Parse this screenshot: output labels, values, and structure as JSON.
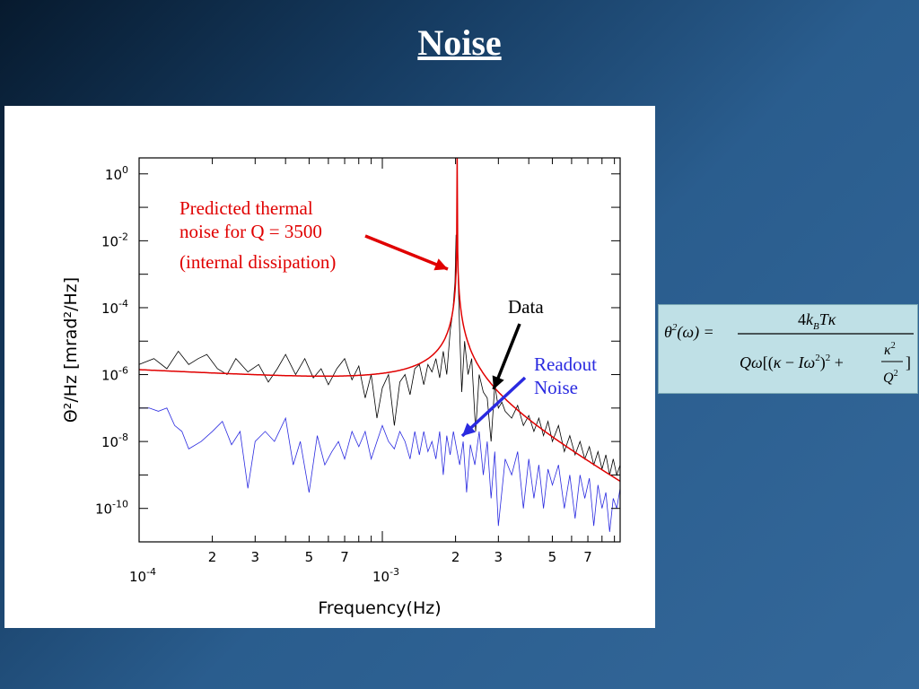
{
  "slide": {
    "title": "Noise"
  },
  "annotations": {
    "thermal_line1": "Predicted thermal",
    "thermal_line2": "noise for Q = 3500",
    "thermal_line3": "(internal dissipation)",
    "data_label": "Data",
    "readout_line1": "Readout",
    "readout_line2": "Noise"
  },
  "formula": {
    "lhs": "θ²(ω) =",
    "numerator": "4k_B T κ",
    "denominator": "Qω[(κ − Iω²)² + κ²/Q²]"
  },
  "colors": {
    "data": "#000000",
    "thermal": "#e00000",
    "readout": "#2a2ae0",
    "annotation_red": "#e00000",
    "annotation_blue": "#2a2ae0"
  },
  "chart_data": {
    "type": "line",
    "xscale": "log",
    "yscale": "log",
    "xlabel": "Frequency(Hz)",
    "ylabel": "Θ²/Hz [mrad²/Hz]",
    "xlim": [
      0.0001,
      0.0095
    ],
    "ylim": [
      1e-11,
      3.0
    ],
    "y_ticks": [
      {
        "value": 1.0,
        "mant": "10",
        "exp": "0"
      },
      {
        "value": 0.01,
        "mant": "10",
        "exp": "-2"
      },
      {
        "value": 0.0001,
        "mant": "10",
        "exp": "-4"
      },
      {
        "value": 1e-06,
        "mant": "10",
        "exp": "-6"
      },
      {
        "value": 1e-08,
        "mant": "10",
        "exp": "-8"
      },
      {
        "value": 1e-10,
        "mant": "10",
        "exp": "-10"
      }
    ],
    "x_major_ticks": [
      {
        "value": 0.0001,
        "mant": "10",
        "exp": "-4"
      },
      {
        "value": 0.001,
        "mant": "10",
        "exp": "-3"
      }
    ],
    "x_minor_labels": [
      {
        "value": 0.0002,
        "label": "2"
      },
      {
        "value": 0.0003,
        "label": "3"
      },
      {
        "value": 0.0005,
        "label": "5"
      },
      {
        "value": 0.0007,
        "label": "7"
      },
      {
        "value": 0.002,
        "label": "2"
      },
      {
        "value": 0.003,
        "label": "3"
      },
      {
        "value": 0.005,
        "label": "5"
      },
      {
        "value": 0.007,
        "label": "7"
      }
    ],
    "thermal_model": {
      "Q": 3500,
      "resonance_hz": 0.00203,
      "low_freq_value": 1.4e-06,
      "min_value": 2.1e-07
    },
    "series": [
      {
        "name": "Data",
        "x": [
          0.0001,
          0.000115,
          0.00013,
          0.000145,
          0.00016,
          0.000175,
          0.00019,
          0.00021,
          0.00023,
          0.00025,
          0.00028,
          0.00031,
          0.00034,
          0.00037,
          0.0004,
          0.00044,
          0.00048,
          0.00052,
          0.00056,
          0.0006,
          0.00065,
          0.0007,
          0.00075,
          0.0008,
          0.00085,
          0.0009,
          0.00095,
          0.001,
          0.00106,
          0.00112,
          0.00118,
          0.00124,
          0.0013,
          0.00136,
          0.00142,
          0.00148,
          0.00154,
          0.0016,
          0.00166,
          0.00172,
          0.00178,
          0.00184,
          0.0019,
          0.00195,
          0.00199,
          0.00201,
          0.00203,
          0.00205,
          0.00208,
          0.00212,
          0.00218,
          0.00225,
          0.00233,
          0.00242,
          0.0025,
          0.0026,
          0.0027,
          0.0028,
          0.0029,
          0.003,
          0.0031,
          0.0032,
          0.0034,
          0.0036,
          0.0038,
          0.004,
          0.0042,
          0.0044,
          0.0046,
          0.0048,
          0.005,
          0.0053,
          0.0056,
          0.0059,
          0.0062,
          0.0065,
          0.0068,
          0.0071,
          0.0074,
          0.0077,
          0.008,
          0.0083,
          0.0086,
          0.0089,
          0.0092,
          0.0095
        ],
        "y": [
          2e-06,
          3e-06,
          1.5e-06,
          5e-06,
          2e-06,
          3e-06,
          4e-06,
          1.5e-06,
          1e-06,
          3e-06,
          1.2e-06,
          2e-06,
          6e-07,
          1.5e-06,
          4e-06,
          1e-06,
          3e-06,
          8e-07,
          1.5e-06,
          5e-07,
          1.5e-06,
          3e-06,
          7e-07,
          1.8e-06,
          2e-07,
          1e-06,
          5e-08,
          4e-07,
          1e-06,
          3e-08,
          6e-07,
          1e-06,
          2.5e-07,
          1.5e-06,
          2e-06,
          5e-07,
          2e-06,
          1.2e-06,
          3e-06,
          8e-07,
          5e-06,
          1e-06,
          2e-05,
          8e-05,
          0.0006,
          0.015,
          0.006,
          0.0008,
          2e-05,
          3e-07,
          1e-05,
          1e-06,
          3e-06,
          2e-08,
          1e-06,
          3e-07,
          2e-07,
          1e-08,
          5e-07,
          1e-07,
          1.5e-07,
          8e-08,
          5e-08,
          1.2e-07,
          3e-08,
          6e-08,
          2e-08,
          5e-08,
          1.5e-08,
          4e-08,
          1e-08,
          3e-08,
          5e-09,
          1.5e-08,
          4e-09,
          1e-08,
          3e-09,
          7e-09,
          2e-09,
          5e-09,
          1.5e-09,
          4e-09,
          1e-09,
          3e-09,
          1e-09,
          2e-09
        ]
      },
      {
        "name": "Readout Noise",
        "x": [
          0.0001,
          0.00011,
          0.00012,
          0.00013,
          0.00014,
          0.00015,
          0.00016,
          0.00018,
          0.0002,
          0.00022,
          0.00024,
          0.00026,
          0.00028,
          0.0003,
          0.00033,
          0.00036,
          0.0004,
          0.00043,
          0.00046,
          0.0005,
          0.00054,
          0.00058,
          0.00062,
          0.00066,
          0.0007,
          0.00075,
          0.0008,
          0.00085,
          0.0009,
          0.00095,
          0.001,
          0.00106,
          0.00112,
          0.00118,
          0.00124,
          0.0013,
          0.00136,
          0.00142,
          0.00148,
          0.00154,
          0.0016,
          0.00166,
          0.00172,
          0.00178,
          0.00184,
          0.0019,
          0.00196,
          0.00202,
          0.00208,
          0.00215,
          0.00222,
          0.0023,
          0.0024,
          0.0025,
          0.0026,
          0.0027,
          0.0028,
          0.0029,
          0.003,
          0.0032,
          0.0034,
          0.0036,
          0.0038,
          0.004,
          0.0042,
          0.0044,
          0.0046,
          0.0048,
          0.005,
          0.0053,
          0.0056,
          0.0059,
          0.0062,
          0.0065,
          0.0068,
          0.0071,
          0.0074,
          0.0077,
          0.008,
          0.0083,
          0.0086,
          0.0089,
          0.0092,
          0.0095
        ],
        "y": [
          1e-07,
          1e-07,
          8e-08,
          1e-07,
          3e-08,
          2e-08,
          6e-09,
          1e-08,
          2e-08,
          4e-08,
          8e-09,
          2e-08,
          4e-10,
          1e-08,
          2e-08,
          1e-08,
          5e-08,
          2e-09,
          1e-08,
          3e-10,
          1.5e-08,
          2e-09,
          5e-09,
          1e-08,
          3e-09,
          2e-08,
          7e-09,
          2e-08,
          3e-09,
          1e-08,
          3e-08,
          1e-08,
          6e-09,
          2e-08,
          1e-08,
          3e-09,
          2e-08,
          4e-09,
          2e-08,
          5e-09,
          1e-08,
          3e-09,
          2e-08,
          1e-09,
          1.5e-08,
          4e-09,
          2e-08,
          6e-09,
          2e-09,
          1e-08,
          3e-10,
          8e-09,
          2e-09,
          2e-08,
          1e-09,
          1e-08,
          2e-10,
          5e-09,
          3e-11,
          3e-09,
          1e-09,
          5e-09,
          1e-10,
          3e-09,
          2e-10,
          2e-09,
          1e-10,
          1.5e-09,
          5e-10,
          2e-09,
          1e-10,
          1e-09,
          5e-11,
          1e-09,
          2e-10,
          8e-10,
          3e-11,
          5e-10,
          1e-10,
          3e-10,
          2e-11,
          2e-10,
          1e-10,
          4e-10
        ]
      }
    ]
  }
}
